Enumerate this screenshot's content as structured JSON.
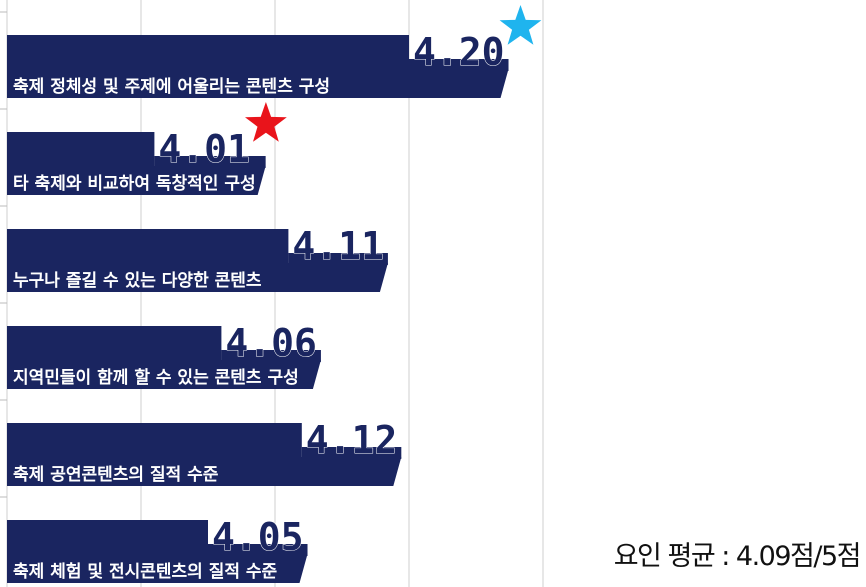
{
  "chart_data": {
    "type": "barh",
    "categories": [
      "축제 정체성 및 주제에 어울리는 콘텐츠 구성",
      "타 축제와 비교하여 독창적인 구성",
      "누구나 즐길 수 있는 다양한 콘텐츠",
      "지역민들이 함께 할 수 있는 콘텐츠 구성",
      "축제 공연콘텐츠의 질적 수준",
      "축제 체험 및 전시콘텐츠의 질적 수준"
    ],
    "values": [
      4.2,
      4.01,
      4.11,
      4.06,
      4.12,
      4.05
    ],
    "value_labels": [
      "4.20",
      "4.01",
      "4.11",
      "4.06",
      "4.12",
      "4.05"
    ],
    "color": "#1a2560",
    "star_colors": [
      "#1fb4ee",
      "#e9141b",
      null,
      null,
      null,
      null
    ],
    "xlim": [
      3.9,
      4.3
    ],
    "xticks": [
      3.9,
      4.0,
      4.1,
      4.2,
      4.3
    ],
    "grid": true,
    "annotation": "요인 평균 : 4.09점/5점"
  }
}
